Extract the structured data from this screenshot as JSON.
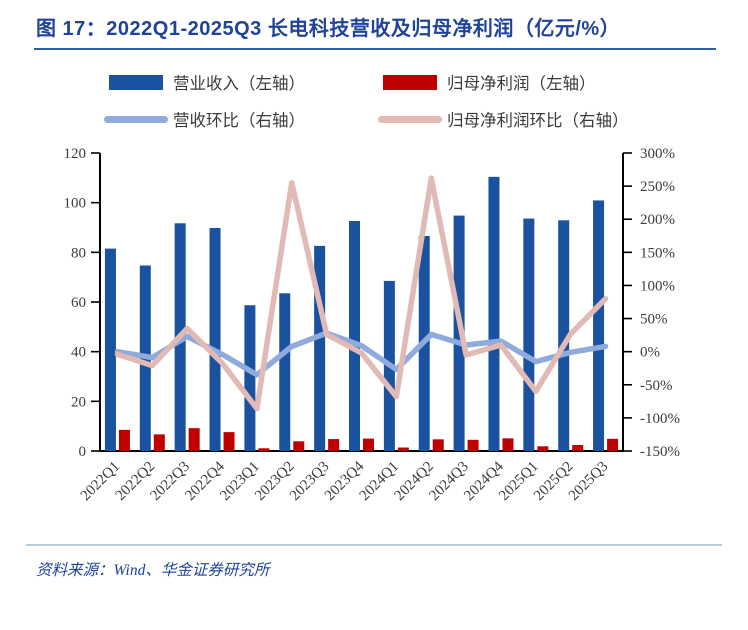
{
  "figure": {
    "title": "图 17：2022Q1-2025Q3 长电科技营收及归母净利润（亿元/%）",
    "source": "资料来源：Wind、华金证券研究所"
  },
  "colors": {
    "title_blue": "#1F429B",
    "title_rule": "#2E5FA3",
    "footer_rule": "#B7CBD8",
    "bar_revenue": "#1A52A0",
    "bar_profit": "#C00000",
    "line_revenue_qoq": "#8FAADC",
    "line_profit_qoq": "#E1BAB5",
    "axis_text": "#3D3D3D",
    "axis_line": "#000000"
  },
  "legend": {
    "items": [
      {
        "label": "营业收入（左轴）",
        "swatch": "bar",
        "color_key": "bar_revenue"
      },
      {
        "label": "归母净利润（左轴）",
        "swatch": "bar",
        "color_key": "bar_profit"
      },
      {
        "label": "营收环比（右轴）",
        "swatch": "line",
        "color_key": "line_revenue_qoq"
      },
      {
        "label": "归母净利润环比（右轴）",
        "swatch": "line",
        "color_key": "line_profit_qoq"
      }
    ]
  },
  "chart_data": {
    "type": "bar",
    "subtype": "combo bar+line, dual axis",
    "title": "2022Q1-2025Q3 长电科技营收及归母净利润（亿元/%）",
    "categories": [
      "2022Q1",
      "2022Q2",
      "2022Q3",
      "2022Q4",
      "2023Q1",
      "2023Q2",
      "2023Q3",
      "2023Q4",
      "2024Q1",
      "2024Q2",
      "2024Q3",
      "2024Q4",
      "2025Q1",
      "2025Q2",
      "2025Q3"
    ],
    "series": [
      {
        "name": "营业收入（左轴）",
        "type": "bar",
        "axis": "left",
        "unit": "亿元",
        "values": [
          81.5,
          74.7,
          91.7,
          89.8,
          58.7,
          63.5,
          82.6,
          92.6,
          68.5,
          86.6,
          94.8,
          110.4,
          93.6,
          92.9,
          100.9
        ]
      },
      {
        "name": "归母净利润（左轴）",
        "type": "bar",
        "axis": "left",
        "unit": "亿元",
        "values": [
          8.5,
          6.7,
          9.2,
          7.6,
          1.1,
          3.9,
          4.8,
          5.0,
          1.4,
          4.7,
          4.5,
          5.1,
          1.9,
          2.4,
          4.9
        ]
      },
      {
        "name": "营收环比（右轴）",
        "type": "line",
        "axis": "right",
        "unit": "%",
        "values": [
          0,
          -9,
          23,
          -4,
          -35,
          8,
          28,
          9,
          -27,
          26,
          10,
          16,
          -15,
          -1,
          8
        ]
      },
      {
        "name": "归母净利润环比（右轴）",
        "type": "line",
        "axis": "right",
        "unit": "%",
        "values": [
          -4,
          -21,
          35,
          -17,
          -86,
          255,
          26,
          -2,
          -68,
          262,
          -5,
          10,
          -60,
          27,
          80
        ]
      }
    ],
    "left_axis": {
      "min": 0,
      "max": 120,
      "tick_values": [
        0,
        20,
        40,
        60,
        80,
        100,
        120
      ],
      "tick_labels": [
        "0",
        "20",
        "40",
        "60",
        "80",
        "100",
        "120"
      ]
    },
    "right_axis": {
      "min": -150,
      "max": 300,
      "tick_values": [
        -150,
        -100,
        -50,
        0,
        50,
        100,
        150,
        200,
        250,
        300
      ],
      "tick_labels": [
        "-150%",
        "-100%",
        "-50%",
        "0%",
        "50%",
        "100%",
        "150%",
        "200%",
        "250%",
        "300%"
      ]
    },
    "grid": false,
    "legend_position": "top"
  }
}
